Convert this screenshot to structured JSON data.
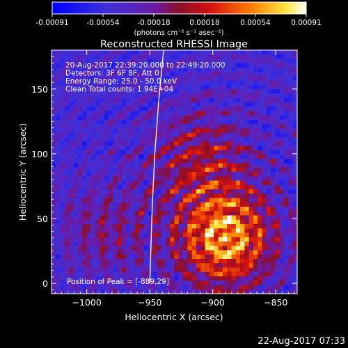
{
  "colorbar": {
    "tick_labels": [
      "-0.00091",
      "-0.00054",
      "-0.00018",
      "0.00018",
      "0.00054",
      "0.00091"
    ],
    "units": "(photons cm⁻² s⁻¹ asec⁻²)",
    "range": [
      -0.00091,
      0.00091
    ]
  },
  "chart_data": {
    "type": "heatmap",
    "title": "Reconstructed RHESSI Image",
    "xlabel": "Heliocentric X (arcsec)",
    "ylabel": "Heliocentric Y (arcsec)",
    "xlim": [
      -1028,
      -833
    ],
    "ylim": [
      -8,
      180
    ],
    "x_ticks": [
      {
        "value": -1000,
        "label": "−1000"
      },
      {
        "value": -950,
        "label": "−950"
      },
      {
        "value": -900,
        "label": "−900"
      },
      {
        "value": -850,
        "label": "−850"
      }
    ],
    "y_ticks": [
      {
        "value": 0,
        "label": "0"
      },
      {
        "value": 50,
        "label": "50"
      },
      {
        "value": 100,
        "label": "100"
      },
      {
        "value": 150,
        "label": "150"
      }
    ],
    "info_lines": [
      "20-Aug-2017 22:39:20.000 to 22:49:20.000",
      "Detectors: 3F 6F 8F, Att 0",
      "Energy Range: 25.0 - 50.0 keV",
      "Clean     Total counts: 1.94E+04"
    ],
    "peak_label": "Position of Peak = [-889,29]",
    "peak_position": [
      -889,
      29
    ],
    "limb_points": [
      [
        -950,
        0
      ],
      [
        -948,
        60
      ],
      [
        -946,
        100
      ],
      [
        -943,
        140
      ],
      [
        -939,
        180
      ]
    ],
    "source_regions": [
      {
        "center": [
          -890,
          35
        ],
        "peak_value": 0.00091
      },
      {
        "center": [
          -910,
          95
        ],
        "peak_value": 0.0004
      },
      {
        "center": [
          -985,
          40
        ],
        "peak_value": 0.00025
      }
    ]
  },
  "footer_timestamp": "22-Aug-2017 07:33"
}
